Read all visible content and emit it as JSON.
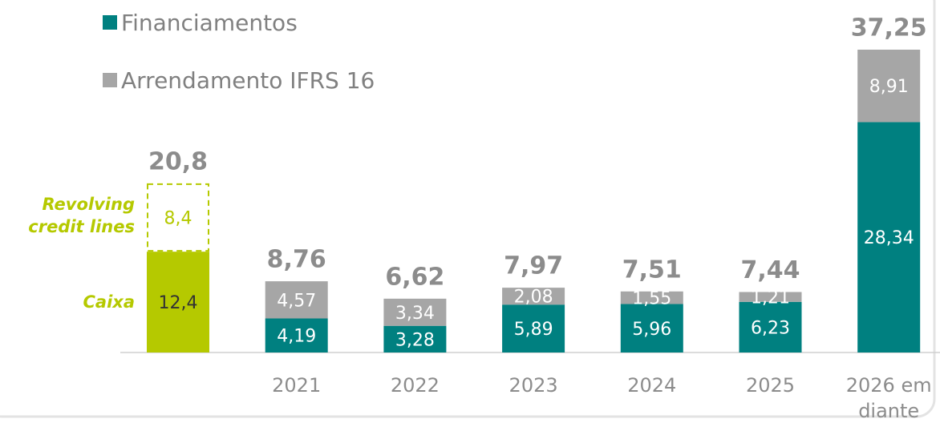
{
  "chart_data": {
    "type": "stacked_bar",
    "categories": [
      null,
      "2021",
      "2022",
      "2023",
      "2024",
      "2025",
      "2026 em diante"
    ],
    "series": [
      {
        "name": "Caixa",
        "color": "#b5c900",
        "label_color": "#333333",
        "style": "solid",
        "in_legend": false,
        "values": [
          12.4,
          null,
          null,
          null,
          null,
          null,
          null
        ],
        "value_labels": [
          "12,4",
          null,
          null,
          null,
          null,
          null,
          null
        ]
      },
      {
        "name": "Revolving credit lines",
        "color": "#b5c900",
        "label_color": "#b5c900",
        "style": "dashed",
        "in_legend": false,
        "values": [
          8.4,
          null,
          null,
          null,
          null,
          null,
          null
        ],
        "value_labels": [
          "8,4",
          null,
          null,
          null,
          null,
          null,
          null
        ]
      },
      {
        "name": "Financiamentos",
        "color": "#008080",
        "label_color": "#ffffff",
        "style": "solid",
        "in_legend": true,
        "values": [
          null,
          4.19,
          3.28,
          5.89,
          5.96,
          6.23,
          28.34
        ],
        "value_labels": [
          null,
          "4,19",
          "3,28",
          "5,89",
          "5,96",
          "6,23",
          "28,34"
        ]
      },
      {
        "name": "Arrendamento IFRS 16",
        "color": "#a6a6a6",
        "label_color": "#ffffff",
        "style": "solid",
        "in_legend": true,
        "values": [
          null,
          4.57,
          3.34,
          2.08,
          1.55,
          1.21,
          8.91
        ],
        "value_labels": [
          null,
          "4,57",
          "3,34",
          "2,08",
          "1,55",
          "1,21",
          "8,91"
        ]
      }
    ],
    "totals": {
      "values": [
        20.8,
        8.76,
        6.62,
        7.97,
        7.51,
        7.44,
        37.25
      ],
      "value_labels": [
        "20,8",
        "8,76",
        "6,62",
        "7,97",
        "7,51",
        "7,44",
        "37,25"
      ]
    }
  }
}
